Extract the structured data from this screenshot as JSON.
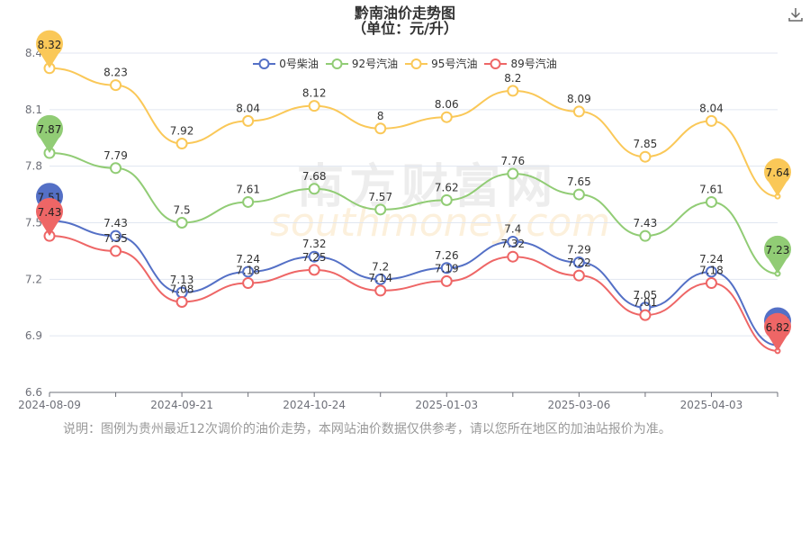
{
  "title": "黔南油价走势图",
  "subtitle": "（单位：元/升）",
  "note": "说明：图例为贵州最近12次调价的油价走势，本网站油价数据仅供参考，请以您所在地区的加油站报价为准。",
  "watermark": {
    "cn": "南方财富网",
    "en": "southmoney.com"
  },
  "download_icon": "download-icon",
  "chart_data": {
    "type": "line",
    "x_labels": [
      "2024-08-09",
      "",
      "2024-09-21",
      "",
      "2024-10-24",
      "",
      "2025-01-03",
      "",
      "2025-03-06",
      "",
      "2025-04-03",
      ""
    ],
    "x_axis_ticks": [
      "2024-08-09",
      "2024-09-21",
      "2024-10-24",
      "2025-01-03",
      "2025-03-06",
      "2025-04-03"
    ],
    "y_ticks": [
      "6.6",
      "6.9",
      "7.2",
      "7.5",
      "7.8",
      "8.1",
      "8.4"
    ],
    "ylim": [
      6.6,
      8.4
    ],
    "grid": true,
    "legend_position": "top-center",
    "smooth": true,
    "series": [
      {
        "name": "0号柴油",
        "color": "#5470c6",
        "values": [
          7.51,
          7.43,
          7.13,
          7.24,
          7.32,
          7.2,
          7.26,
          7.4,
          7.29,
          7.05,
          7.24,
          6.85
        ],
        "labels": [
          "",
          "7.43",
          "7.13",
          "7.24",
          "7.32",
          "7.2",
          "7.26",
          "7.4",
          "7.29",
          "7.05",
          "7.24",
          ""
        ],
        "max_label": "7.51",
        "min_label": "6.85"
      },
      {
        "name": "92号汽油",
        "color": "#91cc75",
        "values": [
          7.87,
          7.79,
          7.5,
          7.61,
          7.68,
          7.57,
          7.62,
          7.76,
          7.65,
          7.43,
          7.61,
          7.23
        ],
        "labels": [
          "",
          "7.79",
          "7.5",
          "7.61",
          "7.68",
          "7.57",
          "7.62",
          "7.76",
          "7.65",
          "7.43",
          "7.61",
          ""
        ],
        "max_label": "7.87",
        "min_label": "7.23"
      },
      {
        "name": "95号汽油",
        "color": "#fac858",
        "values": [
          8.32,
          8.23,
          7.92,
          8.04,
          8.12,
          8,
          8.06,
          8.2,
          8.09,
          7.85,
          8.04,
          7.64
        ],
        "labels": [
          "",
          "8.23",
          "7.92",
          "8.04",
          "8.12",
          "8",
          "8.06",
          "8.2",
          "8.09",
          "7.85",
          "8.04",
          ""
        ],
        "max_label": "8.32",
        "min_label": "7.64"
      },
      {
        "name": "89号汽油",
        "color": "#ee6666",
        "values": [
          7.43,
          7.35,
          7.08,
          7.18,
          7.25,
          7.14,
          7.19,
          7.32,
          7.22,
          7.01,
          7.18,
          6.82
        ],
        "labels": [
          "",
          "7.35",
          "7.08",
          "7.18",
          "7.25",
          "7.14",
          "7.19",
          "7.32",
          "7.22",
          "7.01",
          "7.18",
          ""
        ],
        "max_label": "7.43",
        "min_label": "6.82"
      }
    ]
  }
}
